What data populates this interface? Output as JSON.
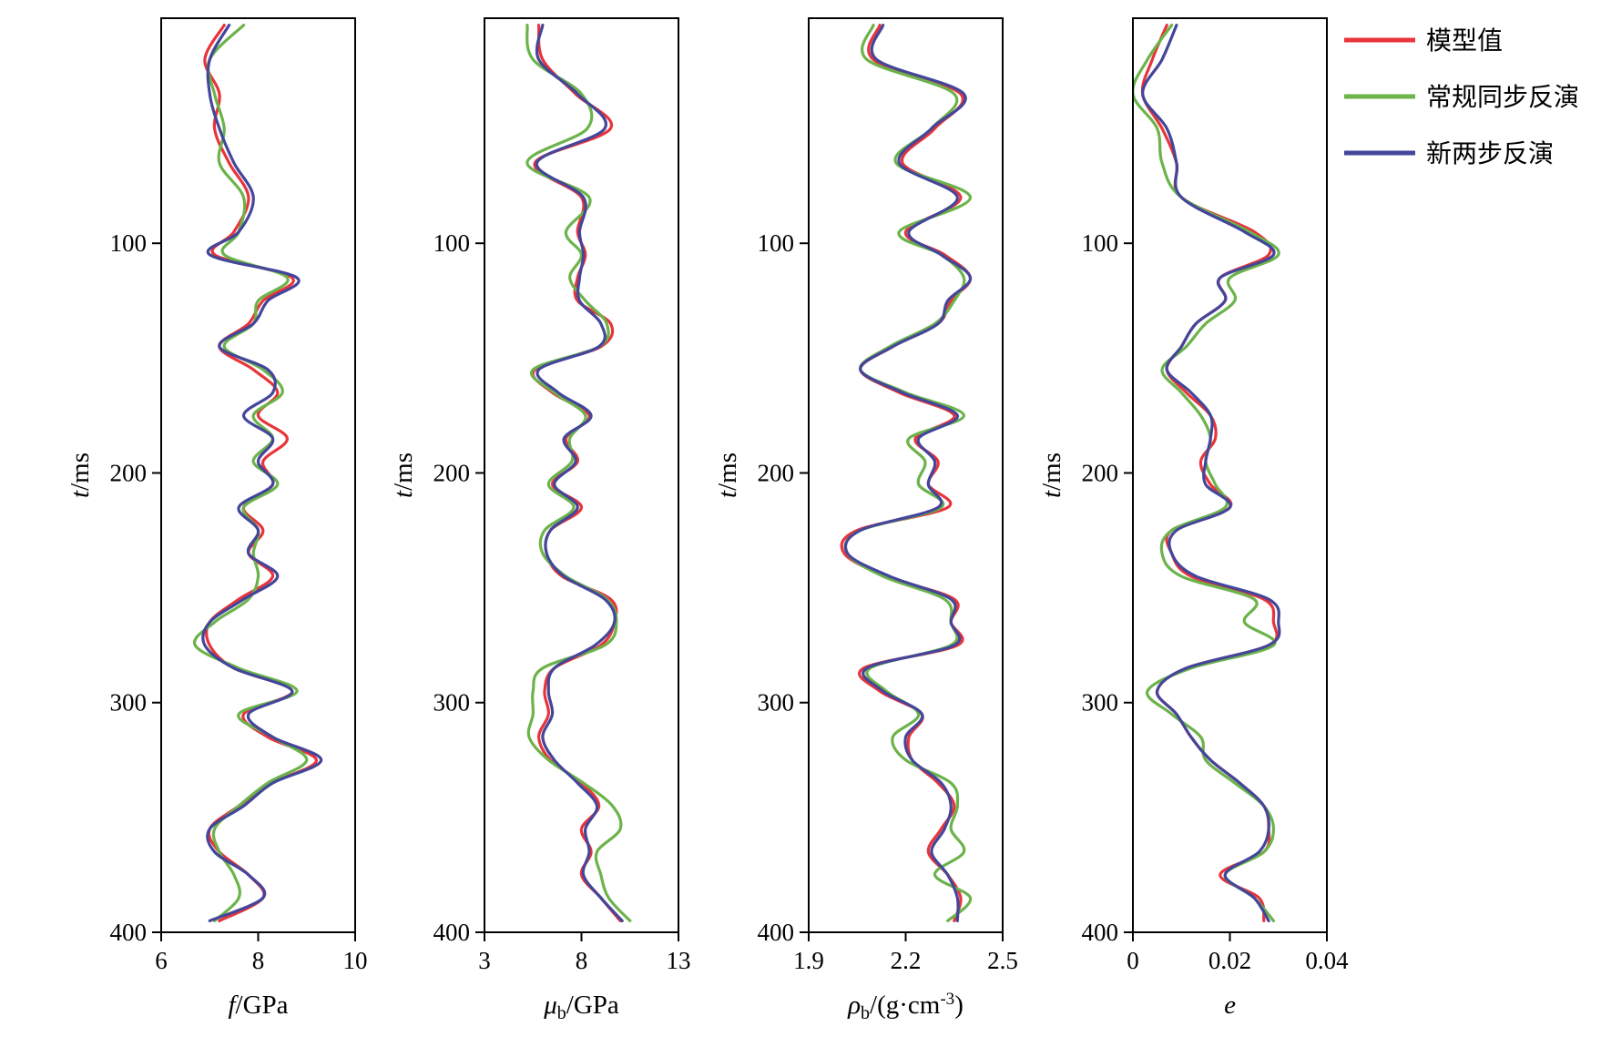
{
  "colors": {
    "model": "#e8343a",
    "conventional": "#6bb34a",
    "new": "#43469a",
    "axis": "#000000"
  },
  "legend": {
    "placement": "top-right",
    "items": [
      {
        "name": "模型值",
        "color": "#e8343a"
      },
      {
        "name": "常规同步反演",
        "color": "#6bb34a"
      },
      {
        "name": "新两步反演",
        "color": "#43469a"
      }
    ]
  },
  "chart_data": [
    {
      "type": "line",
      "orientation": "vertical-depth",
      "xlabel": "f/GPa",
      "ylabel": "t/ms",
      "xlim": [
        6,
        10
      ],
      "ylim": [
        400,
        2
      ],
      "xticks": [
        "6",
        "8",
        "10"
      ],
      "yticks": [
        "100",
        "200",
        "300",
        "400"
      ],
      "t": [
        5,
        20,
        35,
        50,
        65,
        80,
        95,
        105,
        115,
        125,
        135,
        145,
        155,
        165,
        175,
        185,
        195,
        205,
        215,
        225,
        235,
        245,
        255,
        265,
        275,
        285,
        295,
        305,
        315,
        325,
        335,
        345,
        355,
        365,
        375,
        385,
        395
      ],
      "series": [
        {
          "name": "模型值",
          "values": [
            7.3,
            6.9,
            7.2,
            7.1,
            7.4,
            7.8,
            7.5,
            7.1,
            8.7,
            8.1,
            7.8,
            7.2,
            7.9,
            8.4,
            8.0,
            8.6,
            8.1,
            8.3,
            7.7,
            8.1,
            7.8,
            8.3,
            7.6,
            7.0,
            7.0,
            7.5,
            8.7,
            7.7,
            8.2,
            9.2,
            8.3,
            7.6,
            7.0,
            7.2,
            7.8,
            8.1,
            7.2
          ]
        },
        {
          "name": "常规同步反演",
          "values": [
            7.7,
            7.0,
            7.1,
            7.3,
            7.2,
            7.7,
            7.6,
            7.3,
            8.6,
            8.0,
            7.9,
            7.3,
            8.1,
            8.5,
            7.9,
            8.3,
            7.9,
            8.4,
            7.7,
            8.0,
            7.9,
            8.0,
            7.8,
            7.1,
            6.7,
            7.6,
            8.8,
            7.6,
            8.3,
            9.0,
            8.2,
            7.6,
            7.1,
            7.2,
            7.5,
            7.6,
            7.1
          ]
        },
        {
          "name": "新两步反演",
          "values": [
            7.4,
            7.0,
            7.0,
            7.2,
            7.5,
            7.9,
            7.6,
            7.0,
            8.8,
            8.2,
            7.9,
            7.2,
            8.2,
            8.3,
            7.7,
            8.3,
            8.0,
            8.3,
            7.6,
            8.0,
            7.8,
            8.4,
            7.7,
            7.0,
            6.9,
            7.5,
            8.7,
            7.8,
            8.3,
            9.3,
            8.3,
            7.7,
            7.0,
            7.1,
            7.8,
            8.1,
            7.0
          ]
        }
      ]
    },
    {
      "type": "line",
      "orientation": "vertical-depth",
      "xlabel": "μb/GPa",
      "ylabel": "t/ms",
      "xlim": [
        3,
        13
      ],
      "ylim": [
        400,
        2
      ],
      "xticks": [
        "3",
        "8",
        "13"
      ],
      "yticks": [
        "100",
        "200",
        "300",
        "400"
      ],
      "t": [
        5,
        20,
        35,
        50,
        65,
        80,
        95,
        105,
        115,
        125,
        135,
        145,
        155,
        165,
        175,
        185,
        195,
        205,
        215,
        225,
        235,
        245,
        255,
        265,
        275,
        285,
        295,
        305,
        315,
        325,
        335,
        345,
        355,
        365,
        375,
        385,
        395
      ],
      "series": [
        {
          "name": "模型值",
          "values": [
            5.8,
            6.0,
            7.7,
            9.5,
            5.6,
            8.0,
            7.8,
            8.2,
            7.8,
            7.8,
            9.5,
            9.0,
            5.6,
            6.5,
            8.4,
            7.2,
            7.8,
            6.5,
            8.0,
            6.4,
            6.2,
            7.0,
            9.5,
            9.7,
            9.0,
            6.6,
            6.1,
            6.3,
            5.8,
            6.4,
            8.0,
            8.9,
            8.0,
            8.5,
            8.0,
            9.0,
            10.0
          ]
        },
        {
          "name": "常规同步反演",
          "values": [
            5.2,
            5.5,
            8.0,
            8.3,
            5.2,
            8.4,
            7.2,
            8.0,
            7.4,
            8.2,
            9.3,
            8.9,
            5.5,
            6.6,
            8.2,
            7.4,
            7.5,
            6.3,
            7.6,
            6.1,
            6.0,
            7.2,
            9.3,
            9.8,
            9.2,
            6.0,
            5.5,
            5.5,
            5.3,
            6.3,
            8.1,
            9.6,
            10.0,
            8.8,
            9.0,
            9.4,
            10.5
          ]
        },
        {
          "name": "新两步反演",
          "values": [
            6.0,
            5.8,
            7.8,
            9.2,
            5.7,
            8.1,
            7.9,
            8.1,
            7.9,
            7.9,
            9.0,
            8.9,
            5.8,
            6.8,
            8.5,
            7.1,
            7.7,
            6.6,
            7.8,
            6.4,
            6.2,
            7.1,
            9.2,
            9.7,
            8.7,
            6.6,
            6.3,
            6.5,
            6.0,
            6.6,
            7.8,
            8.8,
            8.2,
            8.4,
            8.1,
            9.0,
            10.1
          ]
        }
      ]
    },
    {
      "type": "line",
      "orientation": "vertical-depth",
      "xlabel": "ρb/(g·cm-3)",
      "ylabel": "t/ms",
      "xlim": [
        1.9,
        2.5
      ],
      "ylim": [
        400,
        2
      ],
      "xticks": [
        "1.9",
        "2.2",
        "2.5"
      ],
      "yticks": [
        "100",
        "200",
        "300",
        "400"
      ],
      "t": [
        5,
        20,
        35,
        50,
        65,
        80,
        95,
        105,
        115,
        125,
        135,
        145,
        155,
        165,
        175,
        185,
        195,
        205,
        215,
        225,
        235,
        245,
        255,
        265,
        275,
        285,
        295,
        305,
        315,
        325,
        335,
        345,
        355,
        365,
        375,
        385,
        395
      ],
      "series": [
        {
          "name": "模型值",
          "values": [
            2.12,
            2.1,
            2.37,
            2.29,
            2.19,
            2.37,
            2.2,
            2.32,
            2.4,
            2.34,
            2.3,
            2.16,
            2.06,
            2.18,
            2.35,
            2.23,
            2.3,
            2.27,
            2.33,
            2.05,
            2.01,
            2.14,
            2.35,
            2.34,
            2.36,
            2.07,
            2.12,
            2.25,
            2.21,
            2.22,
            2.3,
            2.35,
            2.31,
            2.27,
            2.33,
            2.37,
            2.35
          ]
        },
        {
          "name": "常规同步反演",
          "values": [
            2.1,
            2.08,
            2.35,
            2.28,
            2.17,
            2.4,
            2.18,
            2.31,
            2.38,
            2.35,
            2.29,
            2.15,
            2.06,
            2.2,
            2.38,
            2.21,
            2.26,
            2.24,
            2.31,
            2.06,
            2.02,
            2.13,
            2.32,
            2.34,
            2.34,
            2.09,
            2.14,
            2.24,
            2.16,
            2.2,
            2.34,
            2.36,
            2.34,
            2.38,
            2.29,
            2.4,
            2.33
          ]
        },
        {
          "name": "新两步反演",
          "values": [
            2.13,
            2.11,
            2.38,
            2.28,
            2.18,
            2.36,
            2.21,
            2.31,
            2.4,
            2.33,
            2.3,
            2.16,
            2.06,
            2.19,
            2.36,
            2.24,
            2.29,
            2.27,
            2.3,
            2.06,
            2.02,
            2.15,
            2.34,
            2.34,
            2.35,
            2.08,
            2.13,
            2.25,
            2.2,
            2.22,
            2.31,
            2.34,
            2.32,
            2.28,
            2.33,
            2.36,
            2.36
          ]
        }
      ]
    },
    {
      "type": "line",
      "orientation": "vertical-depth",
      "xlabel": "e",
      "ylabel": "t/ms",
      "xlim": [
        0,
        0.04
      ],
      "ylim": [
        400,
        2
      ],
      "xticks": [
        "0",
        "0.02",
        "0.04"
      ],
      "yticks": [
        "100",
        "200",
        "300",
        "400"
      ],
      "t": [
        5,
        20,
        35,
        50,
        65,
        80,
        95,
        105,
        115,
        125,
        135,
        145,
        155,
        165,
        175,
        185,
        195,
        205,
        215,
        225,
        235,
        245,
        255,
        265,
        275,
        285,
        295,
        305,
        315,
        325,
        335,
        345,
        355,
        365,
        375,
        385,
        395
      ],
      "series": [
        {
          "name": "模型值",
          "values": [
            0.007,
            0.004,
            0.002,
            0.006,
            0.009,
            0.01,
            0.025,
            0.028,
            0.018,
            0.019,
            0.013,
            0.01,
            0.007,
            0.011,
            0.016,
            0.017,
            0.014,
            0.016,
            0.02,
            0.008,
            0.008,
            0.012,
            0.027,
            0.029,
            0.028,
            0.011,
            0.005,
            0.009,
            0.012,
            0.016,
            0.022,
            0.027,
            0.028,
            0.027,
            0.018,
            0.026,
            0.027
          ]
        },
        {
          "name": "常规同步反演",
          "values": [
            0.008,
            0.003,
            0.0,
            0.005,
            0.006,
            0.01,
            0.024,
            0.03,
            0.02,
            0.021,
            0.015,
            0.011,
            0.006,
            0.01,
            0.014,
            0.016,
            0.015,
            0.017,
            0.019,
            0.008,
            0.006,
            0.01,
            0.025,
            0.023,
            0.029,
            0.012,
            0.003,
            0.008,
            0.014,
            0.015,
            0.021,
            0.027,
            0.029,
            0.027,
            0.019,
            0.025,
            0.029
          ]
        },
        {
          "name": "新两步反演",
          "values": [
            0.009,
            0.006,
            0.002,
            0.007,
            0.009,
            0.01,
            0.023,
            0.029,
            0.018,
            0.019,
            0.013,
            0.01,
            0.007,
            0.012,
            0.016,
            0.016,
            0.015,
            0.015,
            0.02,
            0.009,
            0.008,
            0.013,
            0.028,
            0.03,
            0.028,
            0.011,
            0.005,
            0.009,
            0.012,
            0.016,
            0.022,
            0.027,
            0.028,
            0.026,
            0.019,
            0.025,
            0.028
          ]
        }
      ]
    }
  ]
}
